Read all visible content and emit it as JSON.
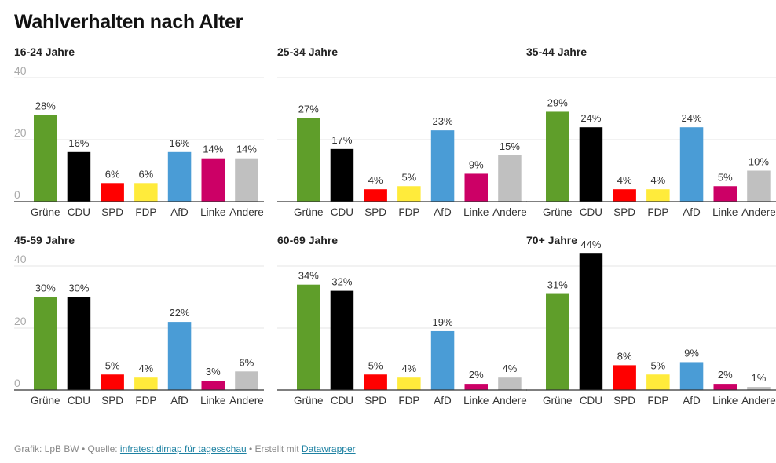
{
  "chart_data": {
    "type": "bar",
    "title": "Wahlverhalten nach Alter",
    "categories": [
      "Grüne",
      "CDU",
      "SPD",
      "FDP",
      "AfD",
      "Linke",
      "Andere"
    ],
    "colors": [
      "#5f9e2a",
      "#000000",
      "#ff0000",
      "#ffeb3b",
      "#4a9cd6",
      "#cc0066",
      "#c0c0c0"
    ],
    "ylim": [
      0,
      40
    ],
    "yticks": [
      0,
      20,
      40
    ],
    "grid": true,
    "value_suffix": "%",
    "panels": [
      {
        "title": "16-24 Jahre",
        "show_ticks": true,
        "values": [
          28,
          16,
          6,
          6,
          16,
          14,
          14
        ]
      },
      {
        "title": "25-34 Jahre",
        "show_ticks": false,
        "values": [
          27,
          17,
          4,
          5,
          23,
          9,
          15
        ]
      },
      {
        "title": "35-44 Jahre",
        "show_ticks": false,
        "values": [
          29,
          24,
          4,
          4,
          24,
          5,
          10
        ]
      },
      {
        "title": "45-59 Jahre",
        "show_ticks": true,
        "values": [
          30,
          30,
          5,
          4,
          22,
          3,
          6
        ]
      },
      {
        "title": "60-69 Jahre",
        "show_ticks": false,
        "values": [
          34,
          32,
          5,
          4,
          19,
          2,
          4
        ]
      },
      {
        "title": "70+ Jahre",
        "show_ticks": false,
        "values": [
          31,
          44,
          8,
          5,
          9,
          2,
          1
        ]
      }
    ]
  },
  "footer": {
    "grafik": "Grafik: LpB BW",
    "sep1": " • Quelle: ",
    "source_link": "infratest dimap für tagesschau",
    "sep2": " • Erstellt mit ",
    "tool_link": "Datawrapper"
  }
}
